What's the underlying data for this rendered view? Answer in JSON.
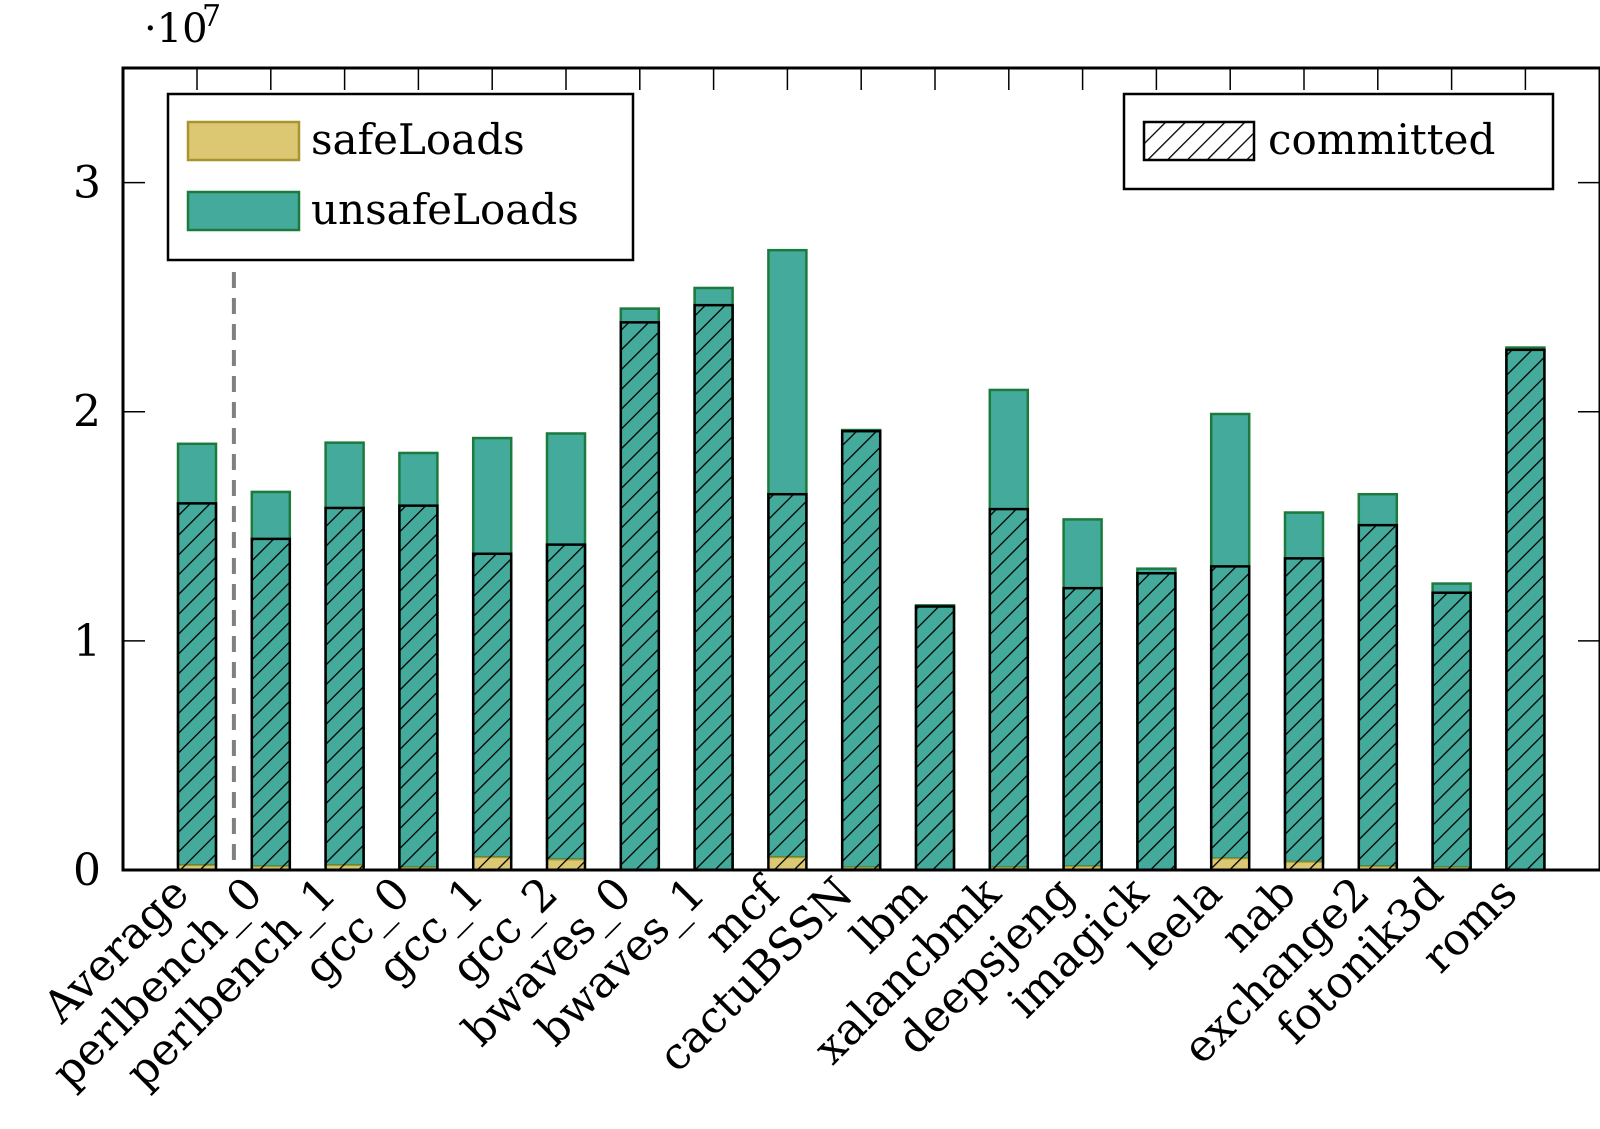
{
  "chart_data": {
    "type": "bar",
    "stacked": true,
    "scale_label": "·10",
    "scale_exponent": "7",
    "categories": [
      "Average",
      "perlbench_0",
      "perlbench_1",
      "gcc_0",
      "gcc_1",
      "gcc_2",
      "bwaves_0",
      "bwaves_1",
      "mcf",
      "cactuBSSN",
      "lbm",
      "xalancbmk",
      "deepsjeng",
      "imagick",
      "leela",
      "nab",
      "exchange2",
      "fotonik3d",
      "roms"
    ],
    "series": [
      {
        "name": "safeLoads",
        "color": "#dcc872",
        "values": [
          200000,
          150000,
          200000,
          100000,
          550000,
          450000,
          0,
          0,
          550000,
          100000,
          0,
          100000,
          150000,
          0,
          500000,
          350000,
          150000,
          100000,
          0
        ]
      },
      {
        "name": "unsafeLoads",
        "color": "#44ab9c",
        "values": [
          18400000,
          16350000,
          18450000,
          18100000,
          18300000,
          18600000,
          24500000,
          25400000,
          26500000,
          19100000,
          11550000,
          20850000,
          15150000,
          13150000,
          19400000,
          15250000,
          16250000,
          12400000,
          22800000
        ]
      }
    ],
    "overlay": {
      "name": "committed",
      "values": [
        16000000,
        14450000,
        15800000,
        15900000,
        13800000,
        14200000,
        23900000,
        24650000,
        16400000,
        19150000,
        11500000,
        15750000,
        12300000,
        12950000,
        13250000,
        13600000,
        15050000,
        12100000,
        22700000
      ]
    },
    "ylim": [
      0,
      35000000
    ],
    "yticks": [
      0,
      10000000,
      20000000,
      30000000
    ],
    "ytick_labels": [
      "0",
      "1",
      "2",
      "3"
    ],
    "reference_line_after": "Average",
    "legend_left": {
      "placement": "top-left",
      "entries": [
        "safeLoads",
        "unsafeLoads"
      ]
    },
    "legend_right": {
      "placement": "top-right",
      "entries": [
        "committed"
      ]
    },
    "title": "",
    "xlabel": "",
    "ylabel": ""
  }
}
